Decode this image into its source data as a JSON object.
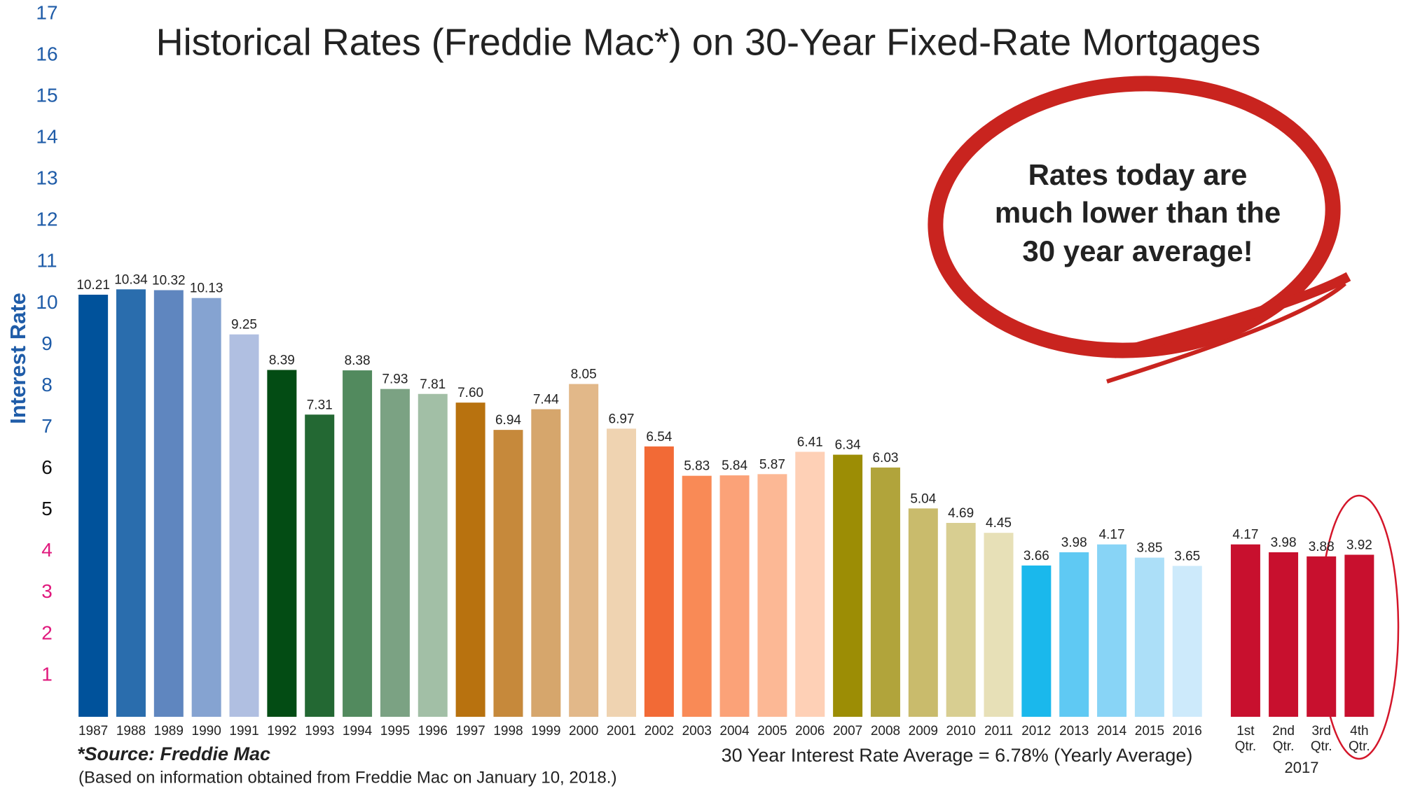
{
  "chart_data": {
    "type": "bar",
    "title": "Historical Rates (Freddie Mac*) on 30-Year Fixed-Rate Mortgages",
    "y_label": "Interest Rate",
    "categories": [
      "1987",
      "1988",
      "1989",
      "1990",
      "1991",
      "1992",
      "1993",
      "1994",
      "1995",
      "1996",
      "1997",
      "1998",
      "1999",
      "2000",
      "2001",
      "2002",
      "2003",
      "2004",
      "2005",
      "2006",
      "2007",
      "2008",
      "2009",
      "2010",
      "2011",
      "2012",
      "2013",
      "2014",
      "2015",
      "2016",
      "1st Qtr.",
      "2nd Qtr.",
      "3rd Qtr.",
      "4th Qtr."
    ],
    "group_label": "2017",
    "values": [
      10.21,
      10.34,
      10.32,
      10.13,
      9.25,
      8.39,
      7.31,
      8.38,
      7.93,
      7.81,
      7.6,
      6.94,
      7.44,
      8.05,
      6.97,
      6.54,
      5.83,
      5.84,
      5.87,
      6.41,
      6.34,
      6.03,
      5.04,
      4.69,
      4.45,
      3.66,
      3.98,
      4.17,
      3.85,
      3.65,
      4.17,
      3.98,
      3.88,
      3.92
    ],
    "value_labels": [
      "10.21",
      "10.34",
      "10.32",
      "10.13",
      "9.25",
      "8.39",
      "7.31",
      "8.38",
      "7.93",
      "7.81",
      "7.60",
      "6.94",
      "7.44",
      "8.05",
      "6.97",
      "6.54",
      "5.83",
      "5.84",
      "5.87",
      "6.41",
      "6.34",
      "6.03",
      "5.04",
      "4.69",
      "4.45",
      "3.66",
      "3.98",
      "4.17",
      "3.85",
      "3.65",
      "4.17",
      "3.98",
      "3.88",
      "3.92"
    ],
    "colors": [
      "#00529b",
      "#2a6dad",
      "#5f86bf",
      "#85a3d1",
      "#b0bfe1",
      "#034c14",
      "#236833",
      "#528a5e",
      "#7ba283",
      "#a2bfa6",
      "#b8720f",
      "#c6893b",
      "#d6a66c",
      "#e2b889",
      "#efd3b1",
      "#f26a36",
      "#f98a56",
      "#fba278",
      "#fcb895",
      "#fed0b6",
      "#9c8d05",
      "#b1a43b",
      "#c9bb6c",
      "#d8ce91",
      "#e7e0b7",
      "#1ab8ec",
      "#5fc9f3",
      "#88d4f6",
      "#acdff8",
      "#cdeafb",
      "#c8102e",
      "#c8102e",
      "#c8102e",
      "#c8102e"
    ],
    "ylim": [
      0,
      17
    ],
    "yticks": [
      1,
      2,
      3,
      4,
      5,
      6,
      7,
      8,
      9,
      10,
      11,
      12,
      13,
      14,
      15,
      16,
      17
    ],
    "ytick_colors": [
      "#e0197d",
      "#e0197d",
      "#e0197d",
      "#e0197d",
      "#111111",
      "#111111",
      "#1f5ca8",
      "#1f5ca8",
      "#1f5ca8",
      "#1f5ca8",
      "#1f5ca8",
      "#1f5ca8",
      "#1f5ca8",
      "#1f5ca8",
      "#1f5ca8",
      "#1f5ca8",
      "#1f5ca8"
    ],
    "grid": false,
    "source": "*Source: Freddie Mac",
    "note": "(Based on information obtained from Freddie Mac on January 10, 2018.)",
    "average_note": "30 Year Interest Rate Average = 6.78% (Yearly Average)",
    "callout": [
      "Rates today are",
      "much lower than the",
      "30 year average!"
    ]
  }
}
